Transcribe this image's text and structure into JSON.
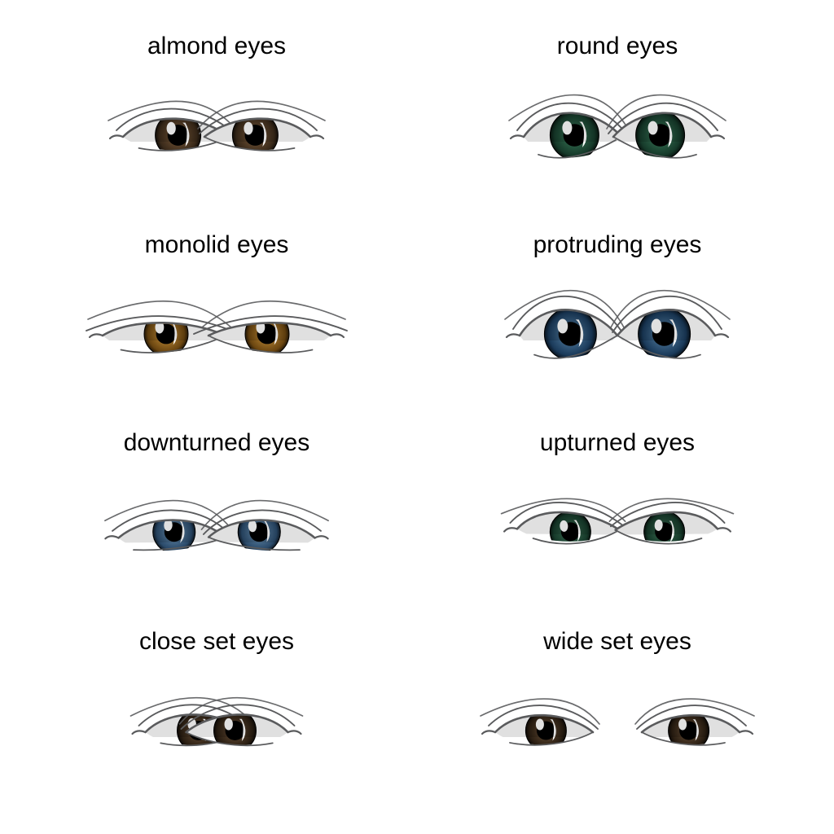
{
  "background_color": "#ffffff",
  "text_color": "#000000",
  "label_fontsize": 30,
  "stroke_color": "#5a5b5d",
  "stroke_width": 2.2,
  "pupil_color": "#000000",
  "highlight_color": "#ffffff",
  "cells": [
    {
      "id": "almond",
      "label": "almond eyes",
      "iris_outer": "#3a2a1a",
      "iris_inner": "#7a5a3a",
      "shape": "almond",
      "gap": 100,
      "eye_w": 130,
      "eye_h": 60,
      "iris_r": 28
    },
    {
      "id": "round",
      "label": "round eyes",
      "iris_outer": "#163a2a",
      "iris_inner": "#3a7a5a",
      "shape": "round",
      "gap": 110,
      "eye_w": 120,
      "eye_h": 72,
      "iris_r": 30
    },
    {
      "id": "monolid",
      "label": "monolid eyes",
      "iris_outer": "#6a4510",
      "iris_inner": "#c8923a",
      "shape": "monolid",
      "gap": 130,
      "eye_w": 150,
      "eye_h": 58,
      "iris_r": 27
    },
    {
      "id": "protruding",
      "label": "protruding eyes",
      "iris_outer": "#1a3a5a",
      "iris_inner": "#5a85a8",
      "shape": "protruding",
      "gap": 120,
      "eye_w": 120,
      "eye_h": 78,
      "iris_r": 32
    },
    {
      "id": "downturned",
      "label": "downturned eyes",
      "iris_outer": "#2a4a6a",
      "iris_inner": "#6a90b0",
      "shape": "downturned",
      "gap": 110,
      "eye_w": 130,
      "eye_h": 58,
      "iris_r": 26
    },
    {
      "id": "upturned",
      "label": "upturned eyes",
      "iris_outer": "#163a2a",
      "iris_inner": "#3a6a50",
      "shape": "upturned",
      "gap": 120,
      "eye_w": 125,
      "eye_h": 56,
      "iris_r": 25
    },
    {
      "id": "closeset",
      "label": "close set eyes",
      "iris_outer": "#2a1e12",
      "iris_inner": "#6a5038",
      "shape": "almond",
      "gap": 50,
      "eye_w": 125,
      "eye_h": 58,
      "iris_r": 26
    },
    {
      "id": "wideset",
      "label": "wide set eyes",
      "iris_outer": "#2a1e12",
      "iris_inner": "#6a5038",
      "shape": "almond",
      "gap": 180,
      "eye_w": 120,
      "eye_h": 56,
      "iris_r": 25
    }
  ]
}
